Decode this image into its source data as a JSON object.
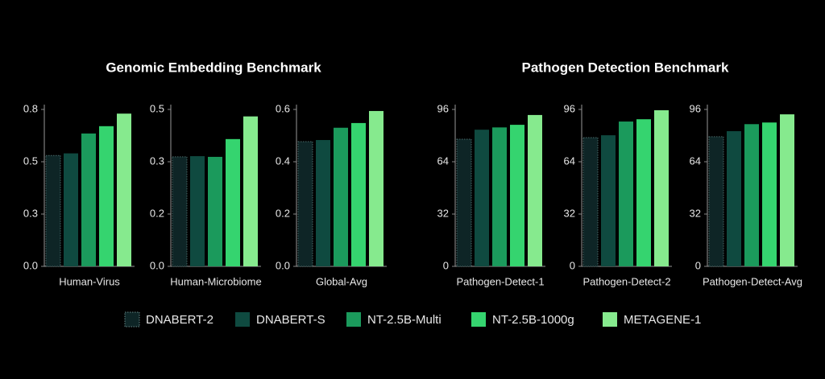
{
  "titles": [
    "Genomic Embedding Benchmark",
    "Pathogen Detection Benchmark"
  ],
  "legend": [
    {
      "name": "DNABERT-2",
      "color": "#0e2526"
    },
    {
      "name": "DNABERT-S",
      "color": "#0f4a40"
    },
    {
      "name": "NT-2.5B-Multi",
      "color": "#1b9a5c"
    },
    {
      "name": "NT-2.5B-1000g",
      "color": "#35d46f"
    },
    {
      "name": "METAGENE-1",
      "color": "#86ea8e"
    }
  ],
  "chart_data": [
    {
      "type": "bar",
      "xlabel": "Human-Virus",
      "values": [
        0.53,
        0.54,
        0.635,
        0.67,
        0.73
      ],
      "ylim": [
        0,
        0.75
      ],
      "yticks": [
        {
          "value": 0,
          "label": "0.0"
        },
        {
          "value": 0.25,
          "label": "0.3"
        },
        0.5,
        {
          "value": 0.75,
          "label": "0.8"
        }
      ]
    },
    {
      "type": "bar",
      "xlabel": "Human-Microbiome",
      "values": [
        0.314,
        0.316,
        0.314,
        0.365,
        0.43
      ],
      "ylim": [
        0,
        0.45
      ],
      "yticks": [
        {
          "value": 0,
          "label": "0.0"
        },
        {
          "value": 0.15,
          "label": "0.2"
        },
        0.3,
        {
          "value": 0.45,
          "label": "0.5"
        }
      ]
    },
    {
      "type": "bar",
      "xlabel": "Global-Avg",
      "values": [
        0.477,
        0.483,
        0.53,
        0.548,
        0.594
      ],
      "ylim": [
        0,
        0.6
      ],
      "yticks": [
        {
          "value": 0,
          "label": "0.0"
        },
        0.2,
        0.4,
        0.6
      ]
    },
    {
      "type": "bar",
      "xlabel": "Pathogen-Detect-1",
      "values": [
        77.8,
        83.6,
        85,
        86.6,
        92.6
      ],
      "ylim": [
        0,
        96
      ],
      "yticks": [
        0,
        32,
        64,
        96
      ]
    },
    {
      "type": "bar",
      "xlabel": "Pathogen-Detect-2",
      "values": [
        78.8,
        80.2,
        88.6,
        90,
        95.5
      ],
      "ylim": [
        0,
        96
      ],
      "yticks": [
        0,
        32,
        64,
        96
      ]
    },
    {
      "type": "bar",
      "xlabel": "Pathogen-Detect-Avg",
      "values": [
        79.3,
        82.7,
        87,
        88,
        93
      ],
      "ylim": [
        0,
        96
      ],
      "yticks": [
        0,
        32,
        64,
        96
      ]
    }
  ]
}
